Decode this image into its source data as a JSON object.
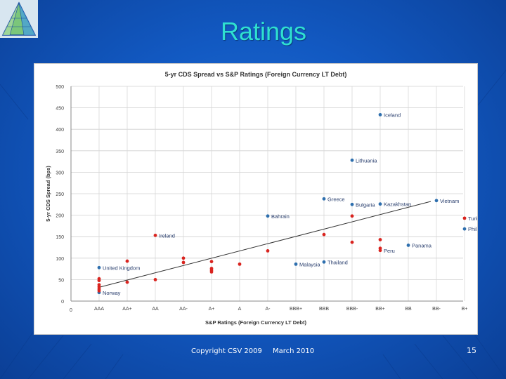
{
  "slide": {
    "title": "Ratings",
    "footer_copyright": "Copyright CSV 2009",
    "footer_date": "March 2010",
    "page_number": "15"
  },
  "colors": {
    "background": "#1259c2",
    "title": "#2fe0d0",
    "sovereign_blue": "#2e6fae",
    "sovereign_red": "#d9241f",
    "trend_line": "#333333"
  },
  "chart_data": {
    "type": "scatter",
    "title": "5-yr CDS Spread vs S&P Ratings (Foreign Currency LT Debt)",
    "xlabel": "S&P Ratings (Foreign Currency LT Debt)",
    "ylabel": "5-yr CDS Spread (bps)",
    "x_origin_label": "0",
    "categories": [
      "AAA",
      "AA+",
      "AA",
      "AA-",
      "A+",
      "A",
      "A-",
      "BBB+",
      "BBB",
      "BBB-",
      "BB+",
      "BB",
      "BB-",
      "B+"
    ],
    "ylim": [
      0,
      500
    ],
    "yticks": [
      0,
      50,
      100,
      150,
      200,
      250,
      300,
      350,
      400,
      450,
      500
    ],
    "grid": true,
    "trendline": {
      "from": {
        "x": 0,
        "y": 32
      },
      "to": {
        "x": 11.8,
        "y": 232
      }
    },
    "series": [
      {
        "color": "blue",
        "points": [
          {
            "x": 0,
            "y": 78,
            "label": "United Kingdom"
          },
          {
            "x": 0,
            "y": 20,
            "label": "Norway"
          },
          {
            "x": 6,
            "y": 198,
            "label": "Bahrain"
          },
          {
            "x": 7,
            "y": 86,
            "label": "Malaysia"
          },
          {
            "x": 8,
            "y": 238,
            "label": "Greece"
          },
          {
            "x": 8,
            "y": 91,
            "label": "Thailand"
          },
          {
            "x": 9,
            "y": 328,
            "label": "Lithuania"
          },
          {
            "x": 9,
            "y": 225,
            "label": "Bulgaria"
          },
          {
            "x": 10,
            "y": 434,
            "label": "Iceland"
          },
          {
            "x": 10,
            "y": 226,
            "label": "Kazakhstan"
          },
          {
            "x": 11,
            "y": 130,
            "label": "Panama"
          },
          {
            "x": 12,
            "y": 234,
            "label": "Vietnam"
          },
          {
            "x": 13,
            "y": 168,
            "label": "Philippines"
          }
        ]
      },
      {
        "color": "red",
        "points": [
          {
            "x": 0,
            "y": 52
          },
          {
            "x": 0,
            "y": 48
          },
          {
            "x": 0,
            "y": 38
          },
          {
            "x": 0,
            "y": 33
          },
          {
            "x": 0,
            "y": 28
          },
          {
            "x": 0,
            "y": 24
          },
          {
            "x": 1,
            "y": 93
          },
          {
            "x": 1,
            "y": 44
          },
          {
            "x": 2,
            "y": 153,
            "label": "Ireland"
          },
          {
            "x": 2,
            "y": 50
          },
          {
            "x": 3,
            "y": 100
          },
          {
            "x": 3,
            "y": 90
          },
          {
            "x": 4,
            "y": 92
          },
          {
            "x": 4,
            "y": 76
          },
          {
            "x": 4,
            "y": 72
          },
          {
            "x": 4,
            "y": 68
          },
          {
            "x": 5,
            "y": 86
          },
          {
            "x": 6,
            "y": 117
          },
          {
            "x": 8,
            "y": 155
          },
          {
            "x": 9,
            "y": 198
          },
          {
            "x": 9,
            "y": 137
          },
          {
            "x": 10,
            "y": 143
          },
          {
            "x": 10,
            "y": 123
          },
          {
            "x": 10,
            "y": 118,
            "label": "Peru"
          },
          {
            "x": 13,
            "y": 193,
            "label": "Turkey"
          }
        ]
      }
    ]
  }
}
